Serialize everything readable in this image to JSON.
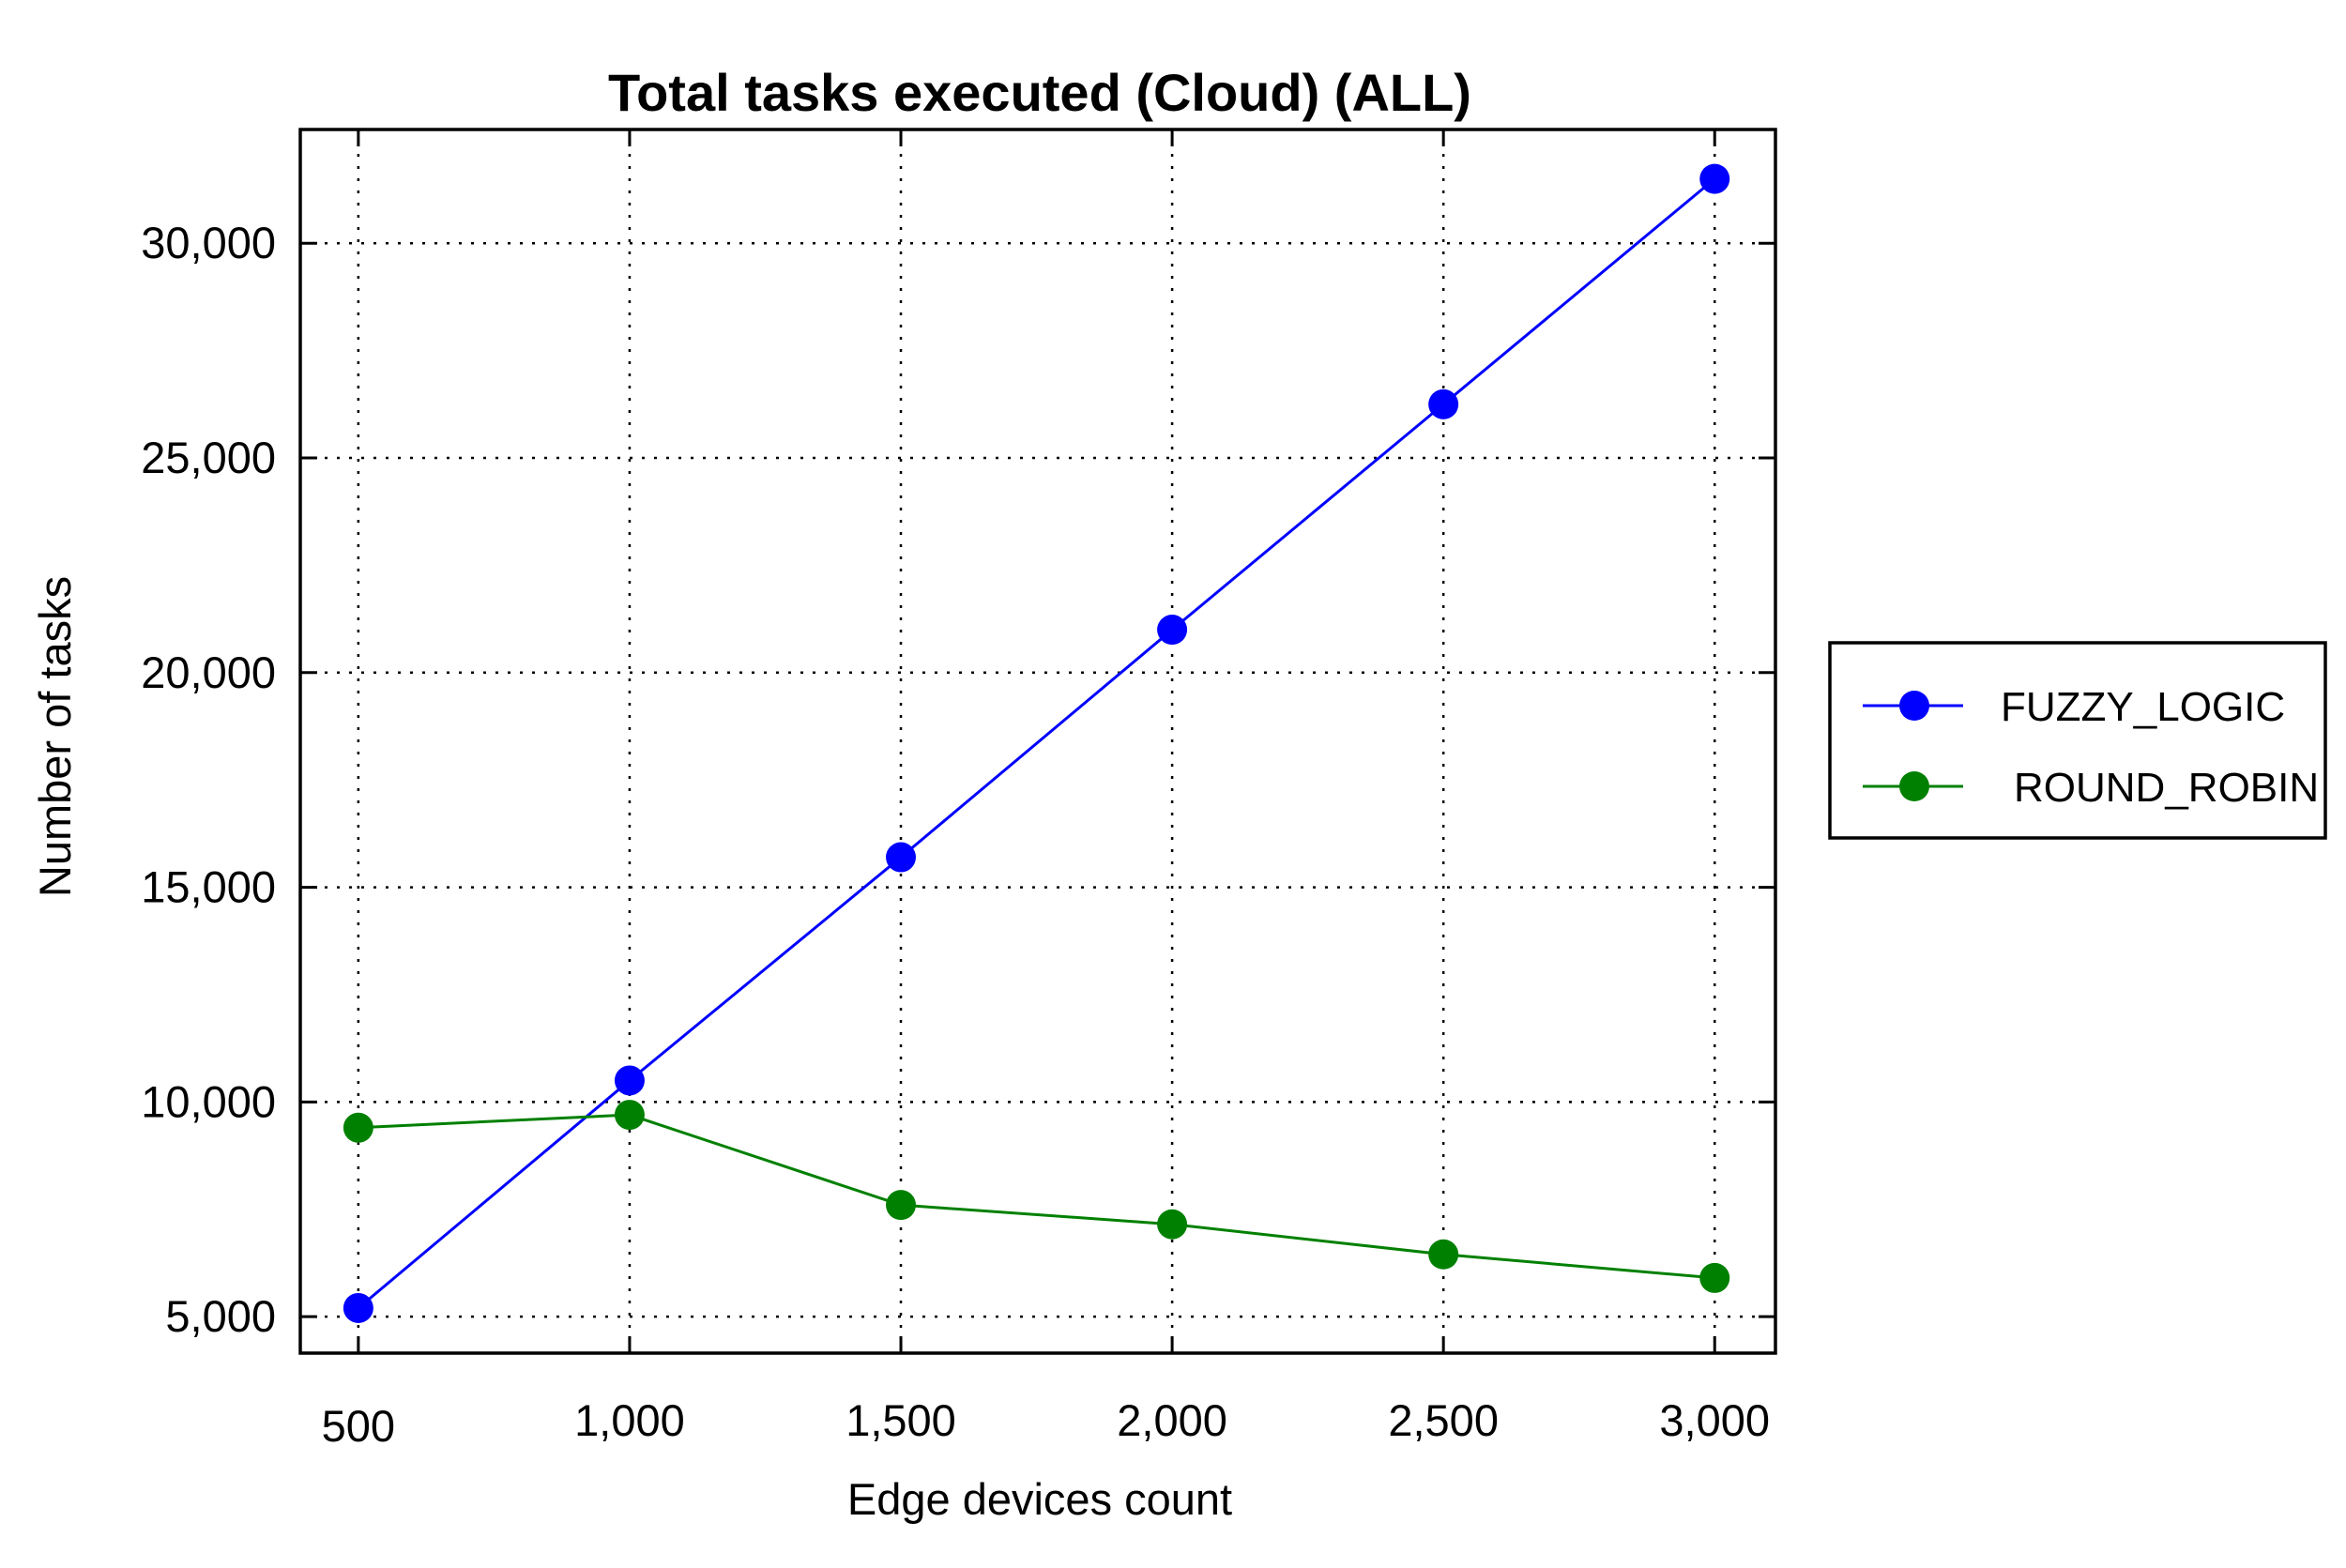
{
  "chart_data": {
    "type": "line",
    "title": "Total tasks executed (Cloud) (ALL)",
    "xlabel": "Edge devices count",
    "ylabel": "Number of tasks",
    "x": [
      500,
      1000,
      1500,
      2000,
      2500,
      3000
    ],
    "x_tick_labels": [
      "500",
      "1,000",
      "1,500",
      "2,000",
      "2,500",
      "3,000"
    ],
    "y_ticks": [
      5000,
      10000,
      15000,
      20000,
      25000,
      30000
    ],
    "y_tick_labels": [
      "5,000",
      "10,000",
      "15,000",
      "20,000",
      "25,000",
      "30,000"
    ],
    "xlim": [
      393,
      3112
    ],
    "ylim": [
      4150,
      32650
    ],
    "grid": true,
    "legend_position": "right",
    "series": [
      {
        "name": "FUZZY_LOGIC",
        "color": "#0000ff",
        "marker": "circle",
        "values": [
          5200,
          10500,
          15700,
          21000,
          26250,
          31500
        ]
      },
      {
        "name": "ROUND_ROBIN",
        "color": "#008000",
        "marker": "circle",
        "values": [
          9400,
          9700,
          7600,
          7150,
          6450,
          5900
        ]
      }
    ]
  }
}
